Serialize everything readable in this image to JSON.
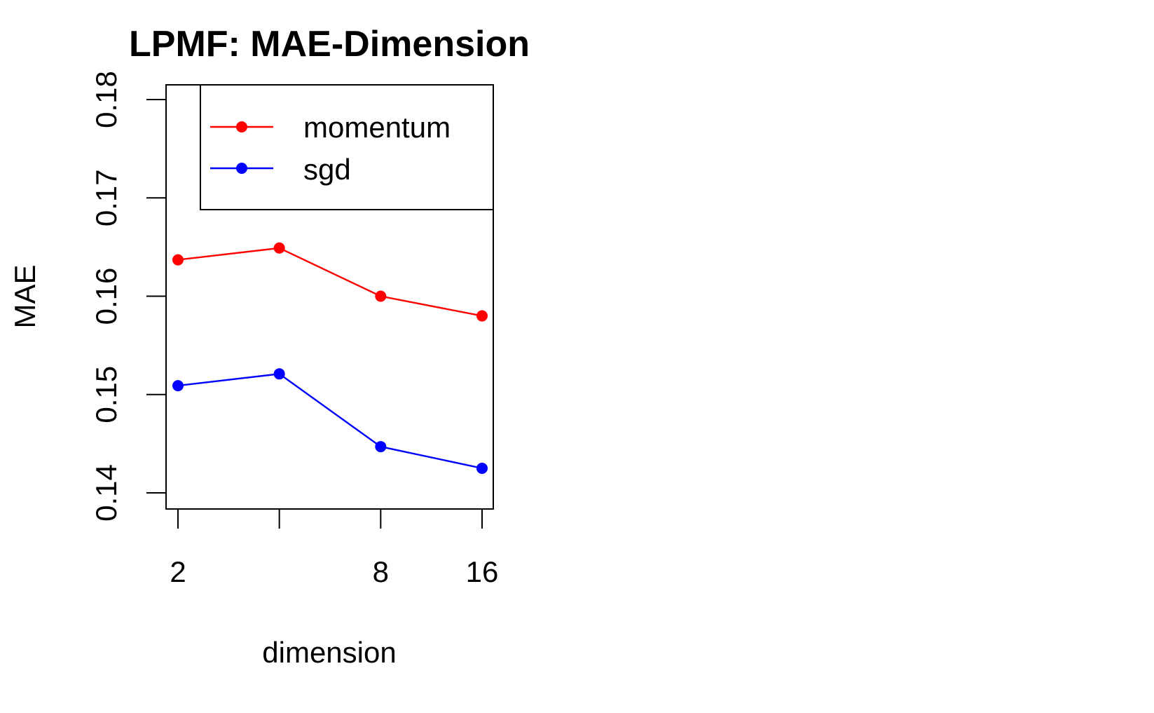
{
  "chart_data": {
    "type": "line",
    "title": "LPMF: MAE-Dimension",
    "xlabel": "dimension",
    "ylabel": "MAE",
    "x": [
      2,
      4,
      8,
      16
    ],
    "x_tick_values": [
      2,
      4,
      8,
      16
    ],
    "x_tick_labels": [
      "2",
      "",
      "8",
      "16"
    ],
    "y_tick_values": [
      0.14,
      0.15,
      0.16,
      0.17,
      0.18
    ],
    "y_tick_labels": [
      "0.14",
      "0.15",
      "0.16",
      "0.17",
      "0.18"
    ],
    "ylim": [
      0.14,
      0.18
    ],
    "x_scale": "log2",
    "grid": false,
    "legend_position": "top-right",
    "series": [
      {
        "name": "momentum",
        "color": "#ff0000",
        "values": [
          0.1637,
          0.1649,
          0.16,
          0.158
        ]
      },
      {
        "name": "sgd",
        "color": "#0000ff",
        "values": [
          0.1509,
          0.1521,
          0.1447,
          0.1425
        ]
      }
    ]
  }
}
